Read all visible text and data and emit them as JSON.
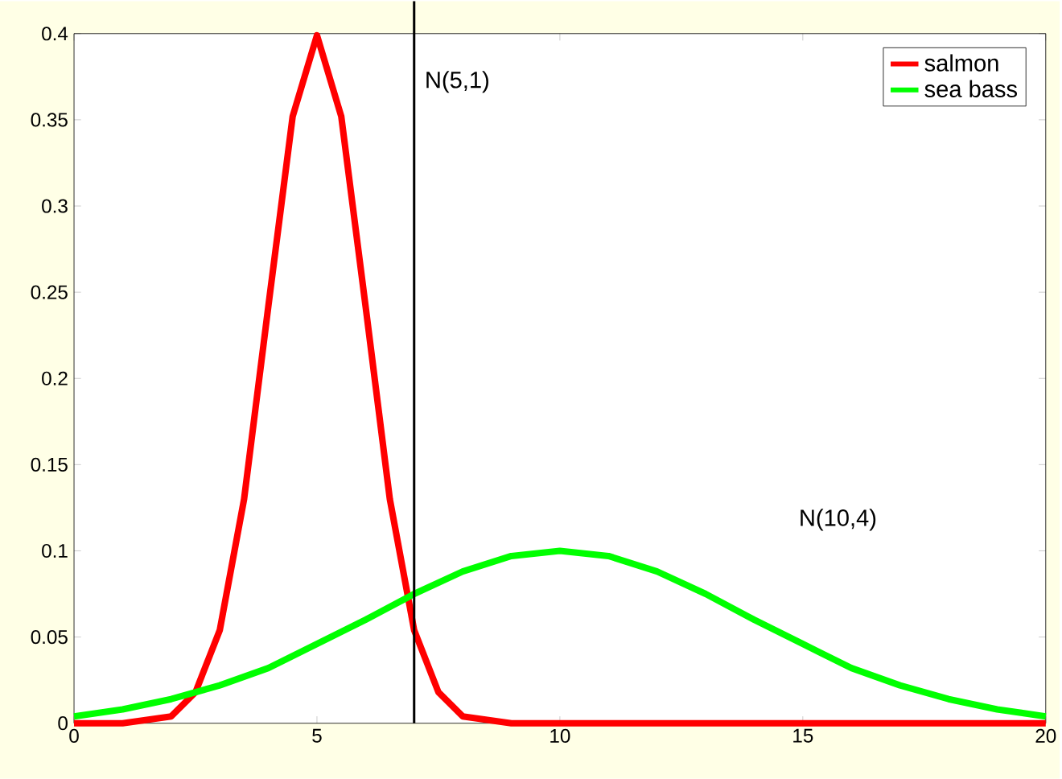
{
  "chart_data": {
    "type": "line",
    "xlim": [
      0,
      20
    ],
    "ylim": [
      0,
      0.4
    ],
    "xticks": [
      0,
      5,
      10,
      15,
      20
    ],
    "yticks": [
      0,
      0.05,
      0.1,
      0.15,
      0.2,
      0.25,
      0.3,
      0.35,
      0.4
    ],
    "legend": "top right",
    "grid": false,
    "marker": "none",
    "line_style": "solid",
    "series": [
      {
        "name": "salmon",
        "color": "#ff0000",
        "x": [
          0,
          1,
          2,
          2.5,
          3,
          3.5,
          4,
          4.5,
          5,
          5.5,
          6,
          6.5,
          7,
          7.5,
          8,
          9,
          10,
          15,
          20
        ],
        "values": [
          0,
          0,
          0.004,
          0.018,
          0.054,
          0.13,
          0.242,
          0.352,
          0.399,
          0.352,
          0.242,
          0.13,
          0.054,
          0.018,
          0.004,
          0,
          0,
          0,
          0
        ]
      },
      {
        "name": "sea bass",
        "color": "#00ff00",
        "x": [
          0,
          1,
          2,
          3,
          4,
          5,
          6,
          7,
          8,
          9,
          10,
          11,
          12,
          13,
          14,
          15,
          16,
          17,
          18,
          19,
          20
        ],
        "values": [
          0.004,
          0.008,
          0.014,
          0.022,
          0.032,
          0.046,
          0.06,
          0.075,
          0.088,
          0.097,
          0.1,
          0.097,
          0.088,
          0.075,
          0.06,
          0.046,
          0.032,
          0.022,
          0.014,
          0.008,
          0.004
        ]
      }
    ],
    "ref_lines": [
      {
        "axis": "x",
        "value": 7,
        "color": "#000000"
      }
    ],
    "annotations": [
      "N(5,1)",
      "N(10,4)"
    ]
  }
}
